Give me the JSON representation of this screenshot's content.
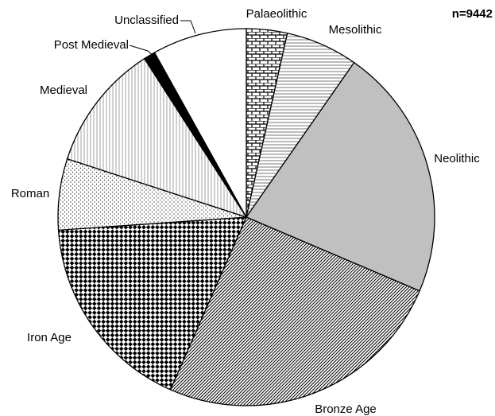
{
  "chart_data": {
    "type": "pie",
    "annotation": "n=9442",
    "categories": [
      "Palaeolithic",
      "Mesolithic",
      "Neolithic",
      "Bronze Age",
      "Iron Age",
      "Roman",
      "Medieval",
      "Post Medieval",
      "Unclassified"
    ],
    "values": [
      3.5,
      6.2,
      21.7,
      25.2,
      17.3,
      6.1,
      10.9,
      1,
      8.1
    ],
    "colors": [
      "#ffffff",
      "#ffffff",
      "#c0c0c0",
      "#ffffff",
      "#ffffff",
      "#ffffff",
      "#ffffff",
      "#000000",
      "#ffffff"
    ],
    "patterns": [
      "brick",
      "hlines",
      "none",
      "diagonal",
      "checker",
      "dots",
      "vlines",
      "none",
      "none"
    ]
  }
}
